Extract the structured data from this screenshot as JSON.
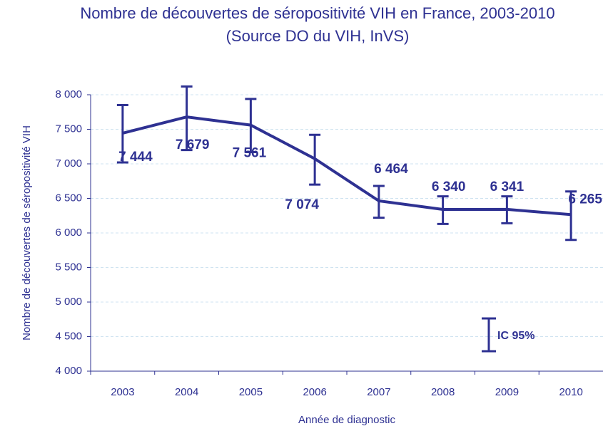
{
  "chart_data": {
    "type": "line",
    "title": "Nombre de découvertes de séropositivité VIH en France, 2003-2010",
    "subtitle": "(Source DO du VIH, InVS)",
    "y_label": "Nombre de découvertes de séropositivité VIH",
    "x_label": "Année de diagnostic",
    "categories": [
      "2003",
      "2004",
      "2005",
      "2006",
      "2007",
      "2008",
      "2009",
      "2010"
    ],
    "series": [
      {
        "name": "IC 95%",
        "color": "#2e3192",
        "values": [
          7444,
          7679,
          7561,
          7074,
          6464,
          6340,
          6341,
          6265
        ],
        "value_labels": [
          "7 444",
          "7 679",
          "7 561",
          "7 074",
          "6 464",
          "6 340",
          "6 341",
          "6 265"
        ],
        "error_low": [
          7020,
          7200,
          7170,
          6700,
          6220,
          6130,
          6140,
          5900
        ],
        "error_high": [
          7850,
          8120,
          7940,
          7420,
          6680,
          6530,
          6530,
          6600
        ]
      }
    ],
    "ylim": [
      4000,
      8000
    ],
    "yticks": [
      {
        "value": 4000,
        "label": "4 000"
      },
      {
        "value": 4500,
        "label": "4 500"
      },
      {
        "value": 5000,
        "label": "5 000"
      },
      {
        "value": 5500,
        "label": "5 500"
      },
      {
        "value": 6000,
        "label": "6 000"
      },
      {
        "value": 6500,
        "label": "6 500"
      },
      {
        "value": 7000,
        "label": "7 000"
      },
      {
        "value": 7500,
        "label": "7 500"
      },
      {
        "value": 8000,
        "label": "8 000"
      }
    ],
    "grid": true
  }
}
